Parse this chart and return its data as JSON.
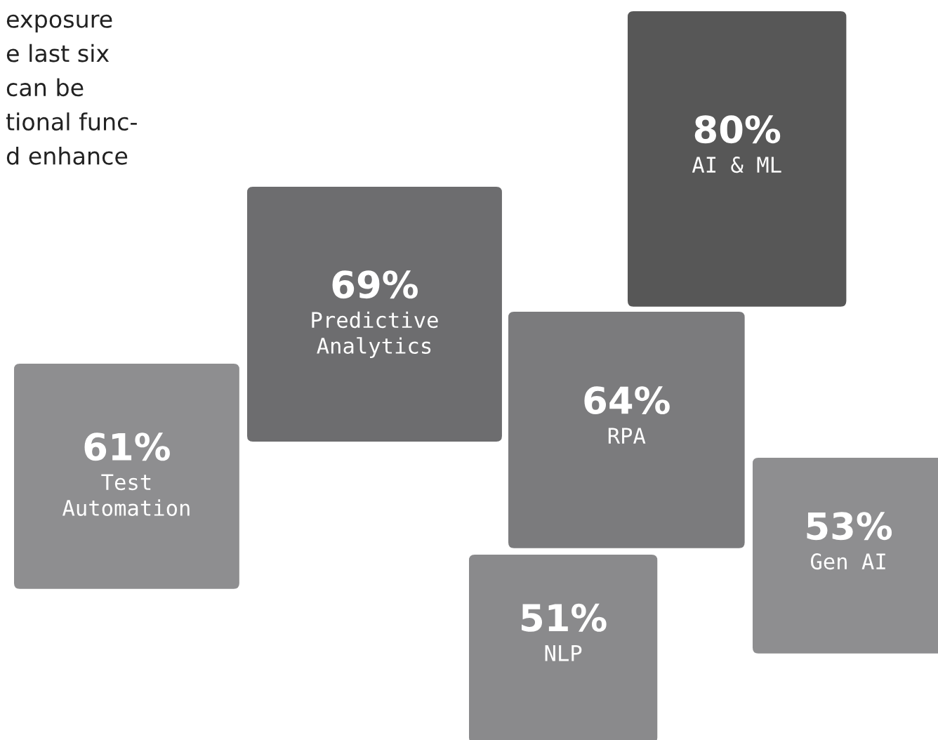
{
  "chart_data": {
    "type": "other",
    "categories": [
      "AI & ML",
      "Predictive\nAnalytics",
      "RPA",
      "Test\nAutomation",
      "Gen AI",
      "NLP"
    ],
    "values": [
      80,
      69,
      64,
      61,
      53,
      51
    ],
    "value_labels": [
      "80%",
      "69%",
      "64%",
      "61%",
      "53%",
      "51%"
    ],
    "colors": [
      "#575757",
      "#6d6d6f",
      "#7b7b7d",
      "#8e8e90",
      "#8e8e90",
      "#8a8a8c"
    ],
    "annotations": [
      "exposure\ne last six\ncan be\ntional func-\nd enhance"
    ]
  }
}
